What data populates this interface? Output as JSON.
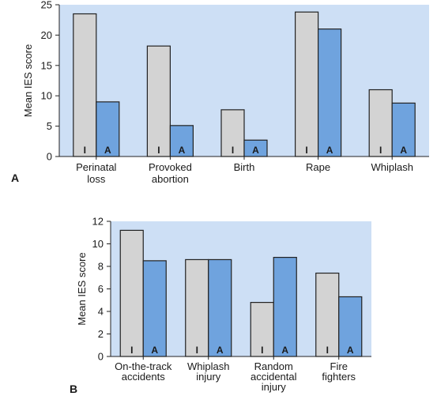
{
  "chart_data": [
    {
      "panel_label": "A",
      "type": "bar",
      "ylabel": "Mean IES score",
      "ylim": [
        0,
        25
      ],
      "yticks": [
        0,
        5,
        10,
        15,
        20,
        25
      ],
      "categories": [
        [
          "Perinatal",
          "loss"
        ],
        [
          "Provoked",
          "abortion"
        ],
        [
          "Birth"
        ],
        [
          "Rape"
        ],
        [
          "Whiplash"
        ]
      ],
      "series": [
        {
          "marker": "I",
          "color": "#d3d3d3",
          "values": [
            23.5,
            18.2,
            7.7,
            23.8,
            11.0
          ]
        },
        {
          "marker": "A",
          "color": "#6fa3de",
          "values": [
            9.0,
            5.1,
            2.7,
            21.0,
            8.8
          ]
        }
      ],
      "panel_background": "#cddff5"
    },
    {
      "panel_label": "B",
      "type": "bar",
      "ylabel": "Mean IES score",
      "ylim": [
        0,
        12
      ],
      "yticks": [
        0,
        2,
        4,
        6,
        8,
        10,
        12
      ],
      "categories": [
        [
          "On-the-track",
          "accidents"
        ],
        [
          "Whiplash",
          "injury"
        ],
        [
          "Random",
          "accidental",
          "injury"
        ],
        [
          "Fire",
          "fighters"
        ]
      ],
      "series": [
        {
          "marker": "I",
          "color": "#d3d3d3",
          "values": [
            11.2,
            8.6,
            4.8,
            7.4
          ]
        },
        {
          "marker": "A",
          "color": "#6fa3de",
          "values": [
            8.5,
            8.6,
            8.8,
            5.3
          ]
        }
      ],
      "panel_background": "#cddff5"
    }
  ]
}
